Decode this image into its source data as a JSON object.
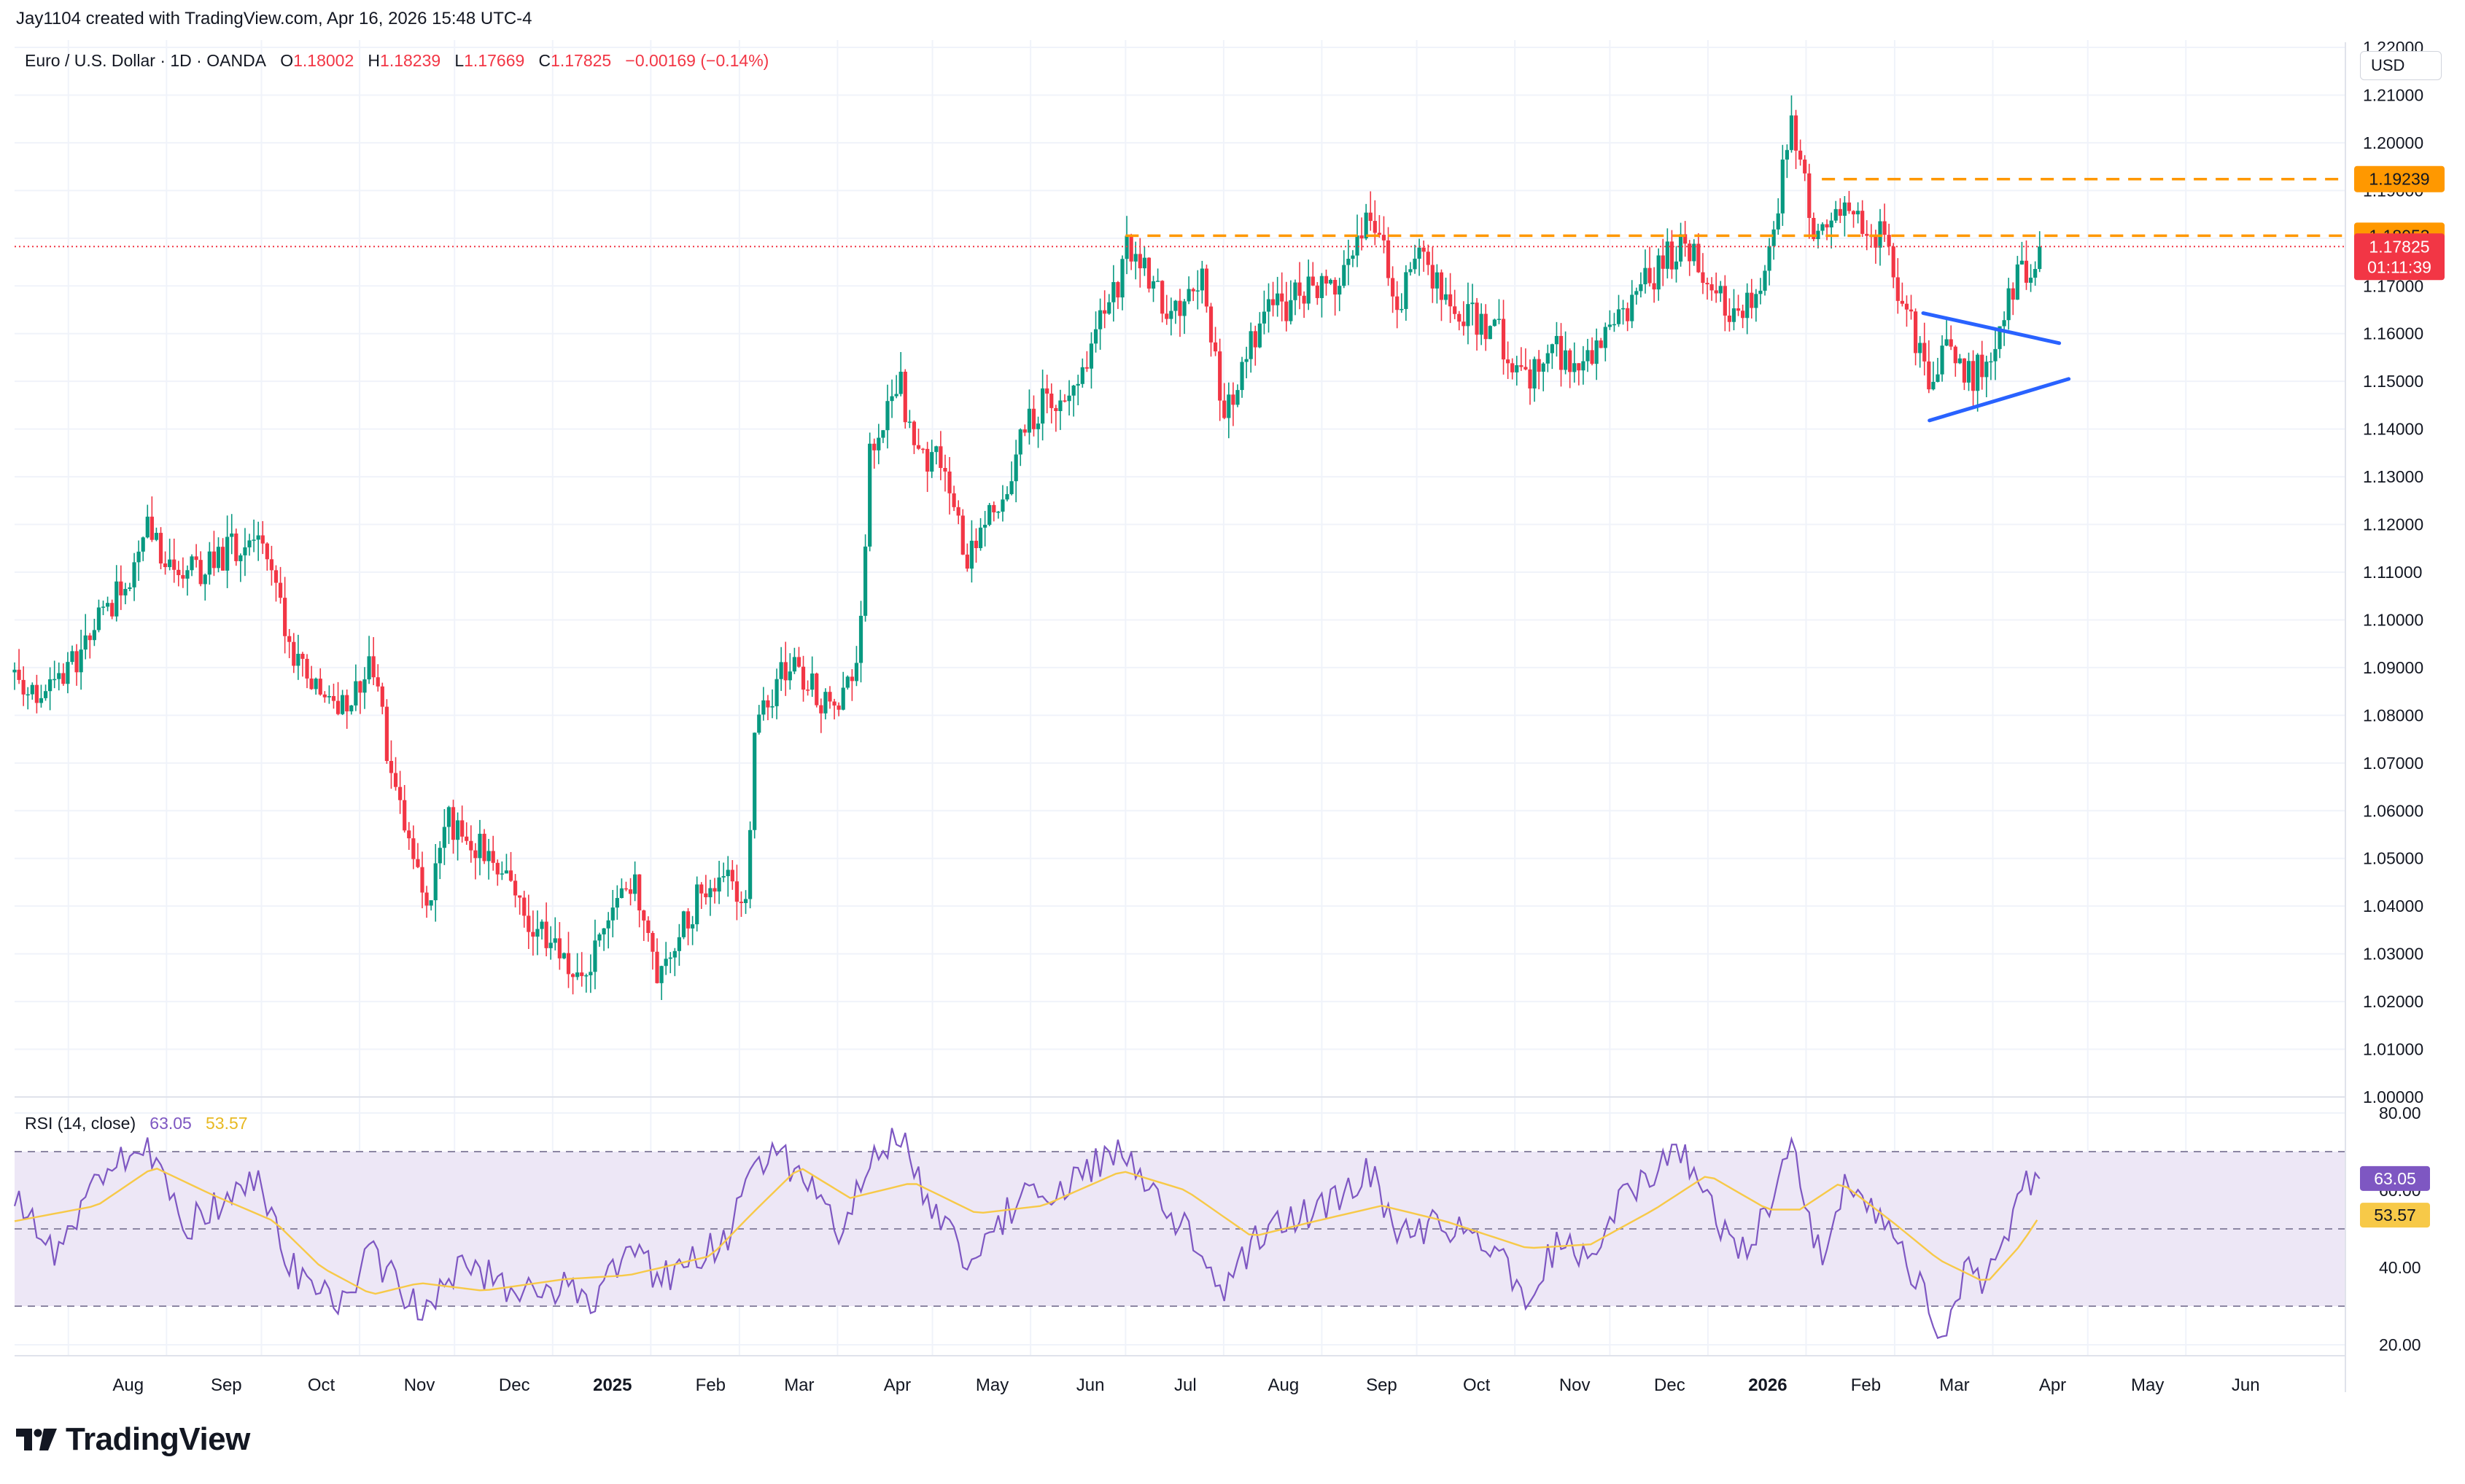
{
  "header": {
    "attribution": "Jay1104 created with TradingView.com, Apr 16, 2026 15:48 UTC-4"
  },
  "legend": {
    "symbol": "Euro / U.S. Dollar · 1D · OANDA",
    "o_label": "O",
    "o_value": "1.18002",
    "h_label": "H",
    "h_value": "1.18239",
    "l_label": "L",
    "l_value": "1.17669",
    "c_label": "C",
    "c_value": "1.17825",
    "change": "−0.00169 (−0.14%)"
  },
  "currency_button": "USD",
  "rsi_legend": {
    "label": "RSI (14, close)",
    "rsi_value": "63.05",
    "ma_value": "53.57"
  },
  "brand": {
    "name": "TradingView"
  },
  "colors": {
    "up": "#089981",
    "down": "#f23645",
    "orange": "#ff9800",
    "blue_line": "#2962ff",
    "rsi": "#7e57c2",
    "rsi_ma": "#f7c948",
    "rsi_band": "#ede7f6",
    "grid": "#f0f3fa"
  },
  "chart_data": [
    {
      "type": "candlestick",
      "title": "Euro / U.S. Dollar · 1D · OANDA",
      "x_tick_labels": [
        "Aug",
        "Sep",
        "Oct",
        "Nov",
        "Dec",
        "2025",
        "Feb",
        "Mar",
        "Apr",
        "May",
        "Jun",
        "Jul",
        "Aug",
        "Sep",
        "Oct",
        "Nov",
        "Dec",
        "2026",
        "Feb",
        "Mar",
        "Apr",
        "May",
        "Jun"
      ],
      "bold_x_ticks": [
        "2025",
        "2026"
      ],
      "y_tick_labels": [
        "1.22000",
        "1.21000",
        "1.20000",
        "1.19000",
        "1.18000",
        "1.17000",
        "1.16000",
        "1.15000",
        "1.14000",
        "1.13000",
        "1.12000",
        "1.11000",
        "1.10000",
        "1.09000",
        "1.08000",
        "1.07000",
        "1.06000",
        "1.05000",
        "1.04000",
        "1.03000",
        "1.02000",
        "1.01000",
        "1.00000"
      ],
      "ylim": [
        1.0,
        1.22
      ],
      "x_range": [
        "2024-07-15",
        "2026-06-30"
      ],
      "grid": true,
      "price_path": [
        [
          "2024-07-15",
          1.089
        ],
        [
          "2024-07-25",
          1.084
        ],
        [
          "2024-08-05",
          1.094
        ],
        [
          "2024-08-20",
          1.11
        ],
        [
          "2024-08-26",
          1.118
        ],
        [
          "2024-09-05",
          1.108
        ],
        [
          "2024-09-25",
          1.116
        ],
        [
          "2024-09-30",
          1.12
        ],
        [
          "2024-10-10",
          1.094
        ],
        [
          "2024-10-25",
          1.08
        ],
        [
          "2024-11-01",
          1.088
        ],
        [
          "2024-11-05",
          1.092
        ],
        [
          "2024-11-12",
          1.064
        ],
        [
          "2024-11-22",
          1.039
        ],
        [
          "2024-11-29",
          1.058
        ],
        [
          "2024-12-10",
          1.052
        ],
        [
          "2024-12-20",
          1.041
        ],
        [
          "2025-01-02",
          1.031
        ],
        [
          "2025-01-10",
          1.024
        ],
        [
          "2025-01-20",
          1.042
        ],
        [
          "2025-01-27",
          1.046
        ],
        [
          "2025-02-03",
          1.026
        ],
        [
          "2025-02-12",
          1.038
        ],
        [
          "2025-02-25",
          1.049
        ],
        [
          "2025-03-03",
          1.04
        ],
        [
          "2025-03-06",
          1.079
        ],
        [
          "2025-03-18",
          1.092
        ],
        [
          "2025-04-01",
          1.078
        ],
        [
          "2025-04-08",
          1.095
        ],
        [
          "2025-04-11",
          1.133
        ],
        [
          "2025-04-21",
          1.15
        ],
        [
          "2025-04-25",
          1.136
        ],
        [
          "2025-05-05",
          1.133
        ],
        [
          "2025-05-12",
          1.112
        ],
        [
          "2025-05-20",
          1.123
        ],
        [
          "2025-06-02",
          1.143
        ],
        [
          "2025-06-16",
          1.152
        ],
        [
          "2025-06-30",
          1.172
        ],
        [
          "2025-07-01",
          1.18
        ],
        [
          "2025-07-15",
          1.163
        ],
        [
          "2025-07-25",
          1.173
        ],
        [
          "2025-08-01",
          1.142
        ],
        [
          "2025-08-12",
          1.162
        ],
        [
          "2025-08-25",
          1.168
        ],
        [
          "2025-09-05",
          1.17
        ],
        [
          "2025-09-16",
          1.187
        ],
        [
          "2025-09-25",
          1.167
        ],
        [
          "2025-10-02",
          1.175
        ],
        [
          "2025-10-15",
          1.164
        ],
        [
          "2025-10-25",
          1.162
        ],
        [
          "2025-11-05",
          1.149
        ],
        [
          "2025-11-12",
          1.159
        ],
        [
          "2025-11-20",
          1.152
        ],
        [
          "2025-12-05",
          1.164
        ],
        [
          "2025-12-15",
          1.173
        ],
        [
          "2025-12-24",
          1.179
        ],
        [
          "2026-01-10",
          1.163
        ],
        [
          "2026-01-20",
          1.175
        ],
        [
          "2026-01-27",
          1.204
        ],
        [
          "2026-02-05",
          1.178
        ],
        [
          "2026-02-12",
          1.188
        ],
        [
          "2026-02-25",
          1.18
        ],
        [
          "2026-03-02",
          1.168
        ],
        [
          "2026-03-08",
          1.158
        ],
        [
          "2026-03-12",
          1.146
        ],
        [
          "2026-03-18",
          1.16
        ],
        [
          "2026-03-25",
          1.15
        ],
        [
          "2026-04-01",
          1.156
        ],
        [
          "2026-04-08",
          1.17
        ],
        [
          "2026-04-16",
          1.178
        ]
      ],
      "horizontal_levels": [
        {
          "price": 1.19239,
          "label": "1.19239",
          "style": "dashed",
          "color": "orange",
          "from": "2026-02-06"
        },
        {
          "price": 1.18053,
          "label": "1.18053",
          "style": "dashed",
          "color": "orange",
          "from": "2025-07-01"
        }
      ],
      "last_price": {
        "price": 1.17825,
        "label": "1.17825",
        "countdown": "01:11:39",
        "style": "dotted",
        "color": "red"
      },
      "trendlines": [
        {
          "from": [
            "2026-03-10",
            1.1643
          ],
          "to": [
            "2026-04-22",
            1.158
          ],
          "color": "blue"
        },
        {
          "from": [
            "2026-03-12",
            1.1418
          ],
          "to": [
            "2026-04-25",
            1.1505
          ],
          "color": "blue"
        }
      ]
    },
    {
      "type": "line",
      "title": "RSI (14, close)",
      "ylim": [
        20,
        80
      ],
      "y_tick_labels": [
        "80.00",
        "60.00",
        "40.00",
        "20.00"
      ],
      "band": [
        30,
        70
      ],
      "midline": 50,
      "series": [
        {
          "name": "RSI (14, close)",
          "color": "rsi",
          "last": 63.05,
          "points": [
            [
              "2024-07-15",
              60
            ],
            [
              "2024-07-28",
              44
            ],
            [
              "2024-08-10",
              62
            ],
            [
              "2024-08-26",
              72
            ],
            [
              "2024-09-06",
              50
            ],
            [
              "2024-09-20",
              58
            ],
            [
              "2024-09-30",
              62
            ],
            [
              "2024-10-12",
              38
            ],
            [
              "2024-10-25",
              30
            ],
            [
              "2024-11-05",
              44
            ],
            [
              "2024-11-15",
              33
            ],
            [
              "2024-11-22",
              28
            ],
            [
              "2024-12-05",
              42
            ],
            [
              "2024-12-20",
              33
            ],
            [
              "2025-01-06",
              35
            ],
            [
              "2025-01-13",
              31
            ],
            [
              "2025-01-27",
              46
            ],
            [
              "2025-02-03",
              36
            ],
            [
              "2025-02-25",
              48
            ],
            [
              "2025-03-05",
              64
            ],
            [
              "2025-03-12",
              72
            ],
            [
              "2025-03-25",
              58
            ],
            [
              "2025-04-02",
              48
            ],
            [
              "2025-04-14",
              72
            ],
            [
              "2025-04-21",
              73
            ],
            [
              "2025-05-01",
              55
            ],
            [
              "2025-05-12",
              42
            ],
            [
              "2025-05-28",
              57
            ],
            [
              "2025-06-15",
              62
            ],
            [
              "2025-06-30",
              72
            ],
            [
              "2025-07-12",
              56
            ],
            [
              "2025-07-25",
              46
            ],
            [
              "2025-08-01",
              34
            ],
            [
              "2025-08-15",
              52
            ],
            [
              "2025-09-01",
              55
            ],
            [
              "2025-09-16",
              65
            ],
            [
              "2025-09-26",
              48
            ],
            [
              "2025-10-08",
              52
            ],
            [
              "2025-10-25",
              46
            ],
            [
              "2025-11-05",
              33
            ],
            [
              "2025-11-15",
              47
            ],
            [
              "2025-11-22",
              41
            ],
            [
              "2025-12-05",
              58
            ],
            [
              "2025-12-15",
              65
            ],
            [
              "2025-12-24",
              70
            ],
            [
              "2026-01-10",
              42
            ],
            [
              "2026-01-22",
              58
            ],
            [
              "2026-01-27",
              76
            ],
            [
              "2026-02-06",
              40
            ],
            [
              "2026-02-13",
              60
            ],
            [
              "2026-02-24",
              52
            ],
            [
              "2026-03-02",
              46
            ],
            [
              "2026-03-10",
              33
            ],
            [
              "2026-03-16",
              24
            ],
            [
              "2026-03-24",
              40
            ],
            [
              "2026-03-30",
              36
            ],
            [
              "2026-04-06",
              50
            ],
            [
              "2026-04-12",
              62
            ],
            [
              "2026-04-16",
              63.05
            ]
          ]
        },
        {
          "name": "RSI-based MA",
          "color": "rsi_ma",
          "last": 53.57,
          "points": [
            [
              "2024-07-15",
              52
            ],
            [
              "2024-08-10",
              56
            ],
            [
              "2024-08-28",
              66
            ],
            [
              "2024-09-15",
              59
            ],
            [
              "2024-10-05",
              52
            ],
            [
              "2024-10-20",
              40
            ],
            [
              "2024-11-05",
              33
            ],
            [
              "2024-11-20",
              36
            ],
            [
              "2024-12-10",
              34
            ],
            [
              "2025-01-05",
              37
            ],
            [
              "2025-01-25",
              38
            ],
            [
              "2025-02-20",
              43
            ],
            [
              "2025-03-05",
              54
            ],
            [
              "2025-03-20",
              66
            ],
            [
              "2025-04-05",
              58
            ],
            [
              "2025-04-25",
              62
            ],
            [
              "2025-05-15",
              54
            ],
            [
              "2025-06-05",
              56
            ],
            [
              "2025-06-30",
              65
            ],
            [
              "2025-07-20",
              60
            ],
            [
              "2025-08-10",
              48
            ],
            [
              "2025-08-30",
              52
            ],
            [
              "2025-09-20",
              56
            ],
            [
              "2025-10-10",
              52
            ],
            [
              "2025-11-05",
              45
            ],
            [
              "2025-11-25",
              46
            ],
            [
              "2025-12-15",
              55
            ],
            [
              "2026-01-01",
              64
            ],
            [
              "2026-01-20",
              55
            ],
            [
              "2026-01-30",
              55
            ],
            [
              "2026-02-12",
              62
            ],
            [
              "2026-02-28",
              52
            ],
            [
              "2026-03-15",
              42
            ],
            [
              "2026-03-30",
              36
            ],
            [
              "2026-04-10",
              46
            ],
            [
              "2026-04-16",
              53.57
            ]
          ]
        }
      ]
    }
  ]
}
